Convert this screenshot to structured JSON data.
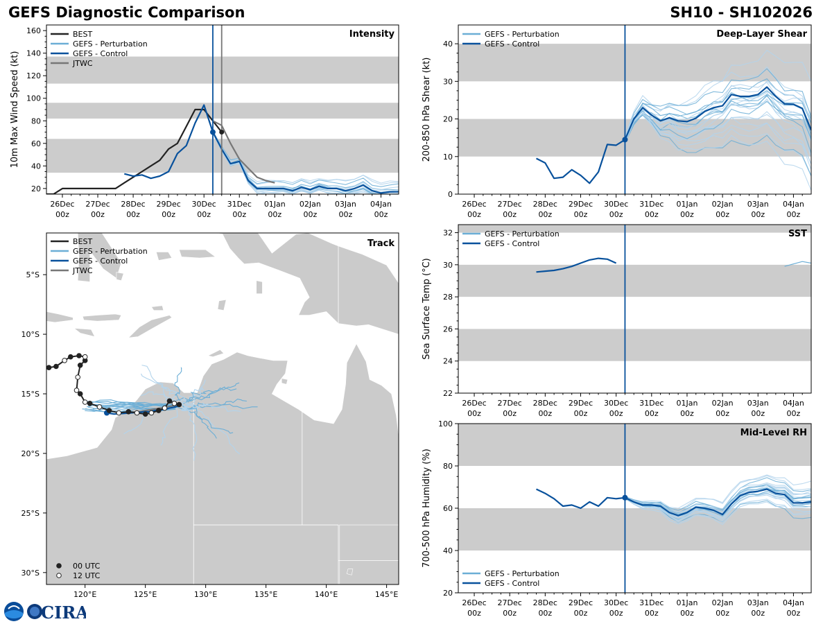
{
  "figure": {
    "title": "GEFS Diagnostic Comparison",
    "storm_id": "SH10 - SH102026",
    "logo_text": "CIRA"
  },
  "colors": {
    "best": "#222222",
    "perturbation": "#6baed6",
    "perturbation_light": "#b3d4ec",
    "control": "#08519c",
    "jtwc": "#777777",
    "band": "#cccccc",
    "land": "#cbcbcb",
    "init_line": "#08519c",
    "jtwc_line": "#777777"
  },
  "time_axis": {
    "tick_labels": [
      [
        "26Dec",
        "00z"
      ],
      [
        "27Dec",
        "00z"
      ],
      [
        "28Dec",
        "00z"
      ],
      [
        "29Dec",
        "00z"
      ],
      [
        "30Dec",
        "00z"
      ],
      [
        "31Dec",
        "00z"
      ],
      [
        "01Jan",
        "00z"
      ],
      [
        "02Jan",
        "00z"
      ],
      [
        "03Jan",
        "00z"
      ],
      [
        "04Jan",
        "00z"
      ]
    ],
    "note": "x values in days after 26Dec 00z"
  },
  "chart_data": [
    {
      "id": "intensity",
      "type": "line",
      "title": "Intensity",
      "ylabel": "10m Max Wind Speed (kt)",
      "xlim": [
        -0.45,
        9.5
      ],
      "ylim": [
        15,
        165
      ],
      "yticks": [
        20,
        40,
        60,
        80,
        100,
        120,
        140,
        160
      ],
      "bands": [
        [
          34,
          64
        ],
        [
          82,
          96
        ],
        [
          113,
          137
        ]
      ],
      "vlines": [
        {
          "x": 4.25,
          "series": "control"
        },
        {
          "x": 4.5,
          "series": "jtwc"
        }
      ],
      "legend": [
        "BEST",
        "GEFS - Perturbation",
        "GEFS - Control",
        "JTWC"
      ],
      "series": [
        {
          "name": "BEST",
          "key": "best",
          "x": [
            -0.5,
            -0.25,
            0,
            0.25,
            0.5,
            0.75,
            1,
            1.25,
            1.5,
            1.75,
            2,
            2.25,
            2.5,
            2.75,
            3,
            3.25,
            3.5,
            3.75,
            4,
            4.25,
            4.5
          ],
          "y": [
            15,
            15,
            20,
            20,
            20,
            20,
            20,
            20,
            20,
            25,
            30,
            35,
            40,
            45,
            55,
            60,
            75,
            90,
            90,
            80,
            70
          ]
        },
        {
          "name": "GEFS - Control",
          "key": "control",
          "x": [
            1.75,
            2,
            2.25,
            2.5,
            2.75,
            3,
            3.25,
            3.5,
            3.75,
            4,
            4.25,
            4.5,
            4.75,
            5,
            5.25,
            5.5,
            5.75,
            6,
            6.25,
            6.5,
            6.75,
            7,
            7.25,
            7.5,
            7.75,
            8,
            8.25,
            8.5,
            8.75,
            9,
            9.25,
            9.5
          ],
          "y": [
            33,
            31,
            32,
            29,
            31,
            35,
            51,
            58,
            78,
            94,
            70,
            55,
            42,
            44,
            27,
            20,
            20,
            20,
            20,
            18,
            21,
            19,
            22,
            20,
            20,
            18,
            20,
            23,
            18,
            16,
            17,
            17
          ]
        },
        {
          "name": "JTWC",
          "key": "jtwc",
          "x": [
            4.25,
            4.5,
            4.75,
            5,
            5.25,
            5.5,
            5.75,
            6
          ],
          "y": [
            80,
            76,
            60,
            46,
            38,
            30,
            27,
            25
          ]
        }
      ],
      "init_point": {
        "x": 4.25,
        "y": 70
      },
      "best_point": {
        "x": 4.5,
        "y": 70
      }
    },
    {
      "id": "shear",
      "type": "line",
      "title": "Deep-Layer Shear",
      "ylabel": "200-850 hPa Shear (kt)",
      "xlim": [
        -0.45,
        9.5
      ],
      "ylim": [
        0,
        45
      ],
      "yticks": [
        0,
        10,
        20,
        30,
        40
      ],
      "bands": [
        [
          10,
          20
        ],
        [
          30,
          40
        ]
      ],
      "vlines": [
        {
          "x": 4.25,
          "series": "control"
        }
      ],
      "legend": [
        "GEFS - Perturbation",
        "GEFS - Control"
      ],
      "series": [
        {
          "name": "GEFS - Control",
          "key": "control",
          "x": [
            1.75,
            2,
            2.25,
            2.5,
            2.75,
            3,
            3.25,
            3.5,
            3.75,
            4,
            4.25,
            4.5,
            4.75,
            5,
            5.25,
            5.5,
            5.75,
            6,
            6.25,
            6.5,
            6.75,
            7,
            7.25,
            7.5,
            7.75,
            8,
            8.25,
            8.5,
            8.75,
            9,
            9.25,
            9.5
          ],
          "y": [
            9.5,
            8.3,
            4.2,
            4.5,
            6.5,
            5,
            2.9,
            5.9,
            13.2,
            13,
            14.5,
            20,
            23,
            21,
            19.5,
            20.3,
            19.5,
            19.3,
            20.2,
            22,
            23,
            23.5,
            26.5,
            26,
            26,
            26.5,
            28.5,
            26,
            24,
            23.9,
            22.8,
            17
          ]
        }
      ],
      "init_point": {
        "x": 4.25,
        "y": 14.5
      }
    },
    {
      "id": "sst",
      "type": "line",
      "title": "SST",
      "ylabel": "Sea Surface Temp (°C)",
      "xlim": [
        -0.45,
        9.5
      ],
      "ylim": [
        22,
        32.5
      ],
      "yticks": [
        22,
        24,
        26,
        28,
        30,
        32
      ],
      "bands": [
        [
          24,
          26
        ],
        [
          28,
          30
        ],
        [
          32,
          32.5
        ]
      ],
      "vlines": [
        {
          "x": 4.25,
          "series": "control"
        }
      ],
      "legend": [
        "GEFS - Perturbation",
        "GEFS - Control"
      ],
      "series": [
        {
          "name": "GEFS - Control",
          "key": "control",
          "x": [
            1.75,
            2,
            2.25,
            2.5,
            2.75,
            3,
            3.25,
            3.5,
            3.75,
            4
          ],
          "y": [
            29.55,
            29.6,
            29.65,
            29.75,
            29.9,
            30.1,
            30.3,
            30.4,
            30.35,
            30.1
          ]
        },
        {
          "name": "GEFS - Perturbation",
          "key": "perturbation",
          "x": [
            8.75,
            9,
            9.25,
            9.5
          ],
          "y": [
            29.9,
            30.05,
            30.2,
            30.1
          ]
        }
      ]
    },
    {
      "id": "rh",
      "type": "line",
      "title": "Mid-Level RH",
      "ylabel": "700-500 hPa Humidity (%)",
      "xlim": [
        -0.45,
        9.5
      ],
      "ylim": [
        20,
        100
      ],
      "yticks": [
        20,
        40,
        60,
        80,
        100
      ],
      "bands": [
        [
          40,
          60
        ],
        [
          80,
          100
        ]
      ],
      "vlines": [
        {
          "x": 4.25,
          "series": "control"
        }
      ],
      "legend": [
        "GEFS - Perturbation",
        "GEFS - Control"
      ],
      "series": [
        {
          "name": "GEFS - Control",
          "key": "control",
          "x": [
            1.75,
            2,
            2.25,
            2.5,
            2.75,
            3,
            3.25,
            3.5,
            3.75,
            4,
            4.25,
            4.5,
            4.75,
            5,
            5.25,
            5.5,
            5.75,
            6,
            6.25,
            6.5,
            6.75,
            7,
            7.25,
            7.5,
            7.75,
            8,
            8.25,
            8.5,
            8.75,
            9,
            9.25,
            9.5
          ],
          "y": [
            69,
            67,
            64.5,
            61,
            61.5,
            60,
            63,
            61,
            65,
            64.5,
            65,
            63,
            61.5,
            61.5,
            61,
            58,
            56.5,
            58,
            60.5,
            60,
            59,
            57,
            62,
            66,
            67.5,
            68,
            69,
            67,
            66.5,
            62.5,
            62.5,
            63
          ]
        }
      ],
      "init_point": {
        "x": 4.25,
        "y": 65
      }
    },
    {
      "id": "track",
      "type": "scatter",
      "title": "Track",
      "xlim": [
        116.8,
        146
      ],
      "ylim": [
        -31,
        -1.5
      ],
      "xtick_labels": [
        [
          120,
          "120°E"
        ],
        [
          125,
          "125°E"
        ],
        [
          130,
          "130°E"
        ],
        [
          135,
          "135°E"
        ],
        [
          140,
          "140°E"
        ],
        [
          145,
          "145°E"
        ]
      ],
      "ytick_labels": [
        [
          -5,
          "5°S"
        ],
        [
          -10,
          "10°S"
        ],
        [
          -15,
          "15°S"
        ],
        [
          -20,
          "20°S"
        ],
        [
          -25,
          "25°S"
        ],
        [
          -30,
          "30°S"
        ]
      ],
      "legend": [
        "BEST",
        "GEFS - Perturbation",
        "GEFS - Control",
        "JTWC"
      ],
      "marker_legend": [
        "00 UTC",
        "12 UTC"
      ],
      "best_track": {
        "lon": [
          127.8,
          127.4,
          127.0,
          126.6,
          126.1,
          125.5,
          125.0,
          124.3,
          123.6,
          122.8,
          122.0,
          121.2,
          120.4,
          120.0,
          119.6,
          119.3,
          119.4,
          119.6,
          120.0,
          120.0,
          119.5,
          118.8,
          118.3,
          117.6,
          117.0
        ],
        "lat": [
          -15.9,
          -15.8,
          -15.6,
          -16.2,
          -16.4,
          -16.6,
          -16.7,
          -16.6,
          -16.5,
          -16.6,
          -16.4,
          -16.1,
          -15.8,
          -15.7,
          -15.0,
          -14.7,
          -13.6,
          -12.6,
          -12.2,
          -11.9,
          -11.8,
          -11.9,
          -12.2,
          -12.7,
          -12.8
        ],
        "marker": [
          "00",
          "12",
          "00",
          "12",
          "00",
          "12",
          "00",
          "12",
          "00",
          "12",
          "00",
          "12",
          "00",
          "12",
          "00",
          "12",
          "12",
          "00",
          "00",
          "12",
          "00",
          "00",
          "12",
          "00",
          "00"
        ]
      },
      "control_track": {
        "lon": [
          128.0,
          127.5,
          127.0,
          126.6,
          126.2,
          125.8,
          125.3,
          125.0,
          124.4,
          123.8,
          123.1,
          122.4,
          121.8
        ],
        "lat": [
          -15.9,
          -16.1,
          -16.2,
          -16.3,
          -16.35,
          -16.4,
          -16.5,
          -16.5,
          -16.55,
          -16.6,
          -16.65,
          -16.7,
          -16.6
        ]
      },
      "jtwc_track": {
        "lon": [
          127.8,
          126.8,
          125.6,
          124.4,
          123.2
        ],
        "lat": [
          -15.9,
          -16.1,
          -16.3,
          -16.5,
          -16.6
        ]
      }
    }
  ]
}
